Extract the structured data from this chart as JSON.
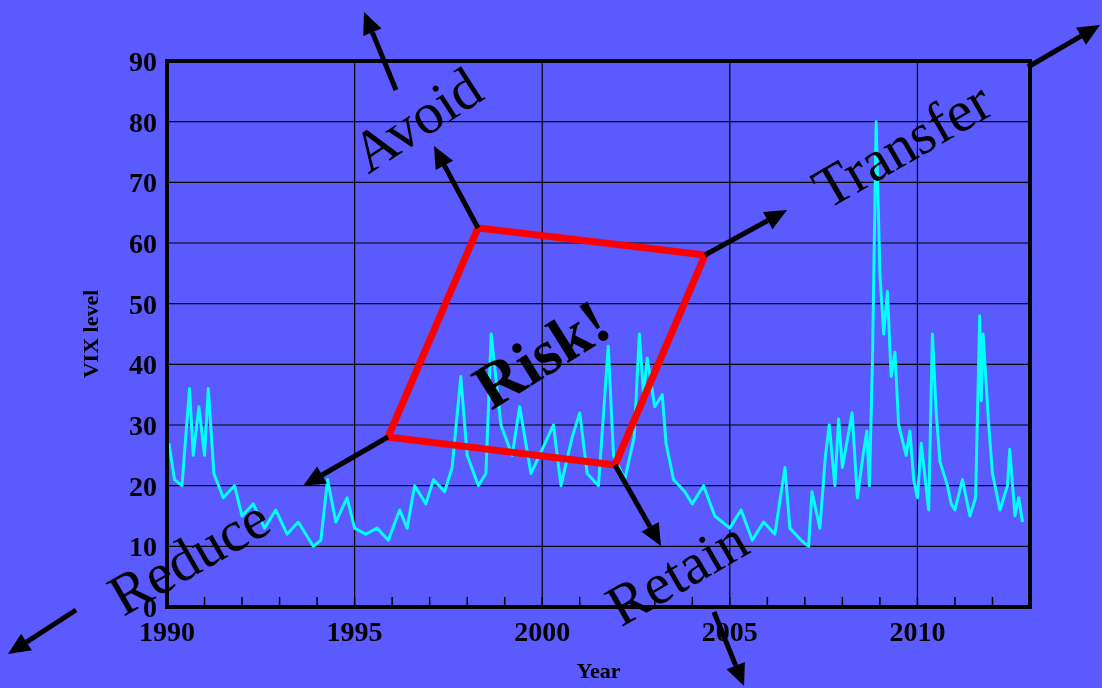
{
  "chart_data": {
    "type": "line",
    "xlabel": "Year",
    "ylabel": "VIX level",
    "xlim": [
      1990,
      2013
    ],
    "ylim": [
      0,
      90
    ],
    "xticks": [
      1990,
      {
        "value": 1991,
        "label": null
      },
      {
        "value": 1992,
        "label": null
      },
      {
        "value": 1993,
        "label": null
      },
      {
        "value": 1994,
        "label": null
      },
      1995,
      {
        "value": 1996,
        "label": null
      },
      {
        "value": 1997,
        "label": null
      },
      {
        "value": 1998,
        "label": null
      },
      {
        "value": 1999,
        "label": null
      },
      2000,
      {
        "value": 2001,
        "label": null
      },
      {
        "value": 2002,
        "label": null
      },
      {
        "value": 2003,
        "label": null
      },
      {
        "value": 2004,
        "label": null
      },
      2005,
      {
        "value": 2006,
        "label": null
      },
      {
        "value": 2007,
        "label": null
      },
      {
        "value": 2008,
        "label": null
      },
      {
        "value": 2009,
        "label": null
      },
      2010,
      {
        "value": 2011,
        "label": null
      },
      {
        "value": 2012,
        "label": null
      }
    ],
    "yticks": [
      0,
      10,
      20,
      30,
      40,
      50,
      60,
      70,
      80,
      90
    ],
    "grid": true,
    "marker": "none",
    "line_style": "solid",
    "annotations": [
      "Avoid",
      "Transfer",
      "Reduce",
      "Retain",
      "Risk!"
    ],
    "series": [
      {
        "color": "#00ffff",
        "x": [
          1990.05,
          1990.2,
          1990.4,
          1990.6,
          1990.7,
          1990.85,
          1991.0,
          1991.1,
          1991.25,
          1991.5,
          1991.8,
          1992.0,
          1992.3,
          1992.6,
          1992.9,
          1993.2,
          1993.5,
          1993.9,
          1994.1,
          1994.28,
          1994.5,
          1994.8,
          1995.0,
          1995.3,
          1995.6,
          1995.9,
          1996.2,
          1996.4,
          1996.6,
          1996.9,
          1997.1,
          1997.4,
          1997.6,
          1997.83,
          1998.0,
          1998.3,
          1998.5,
          1998.64,
          1998.9,
          1999.2,
          1999.4,
          1999.7,
          2000.0,
          2000.3,
          2000.5,
          2000.8,
          2001.0,
          2001.2,
          2001.5,
          2001.76,
          2001.9,
          2002.2,
          2002.45,
          2002.59,
          2002.7,
          2002.8,
          2003.0,
          2003.2,
          2003.3,
          2003.5,
          2003.8,
          2004.0,
          2004.3,
          2004.6,
          2005.0,
          2005.3,
          2005.6,
          2005.9,
          2006.2,
          2006.47,
          2006.6,
          2006.9,
          2007.1,
          2007.19,
          2007.4,
          2007.55,
          2007.65,
          2007.8,
          2007.9,
          2008.0,
          2008.26,
          2008.4,
          2008.55,
          2008.65,
          2008.72,
          2008.8,
          2008.9,
          2009.0,
          2009.1,
          2009.2,
          2009.3,
          2009.4,
          2009.5,
          2009.7,
          2009.8,
          2009.9,
          2010.0,
          2010.1,
          2010.3,
          2010.4,
          2010.5,
          2010.6,
          2010.8,
          2010.9,
          2011.0,
          2011.2,
          2011.4,
          2011.55,
          2011.66,
          2011.7,
          2011.75,
          2011.9,
          2012.0,
          2012.2,
          2012.4,
          2012.46,
          2012.6,
          2012.7,
          2012.8
        ],
        "values": [
          27,
          21,
          20,
          36,
          25,
          33,
          25,
          36,
          22,
          18,
          20,
          15,
          17,
          13,
          16,
          12,
          14,
          10,
          11,
          21,
          14,
          18,
          13,
          12,
          13,
          11,
          16,
          13,
          20,
          17,
          21,
          19,
          23,
          38,
          25,
          20,
          22,
          45,
          30,
          25,
          33,
          22,
          26,
          30,
          20,
          28,
          32,
          22,
          20,
          43,
          25,
          21,
          28,
          45,
          35,
          41,
          33,
          35,
          27,
          21,
          19,
          17,
          20,
          15,
          13,
          16,
          11,
          14,
          12,
          23,
          13,
          11,
          10,
          19,
          13,
          25,
          30,
          20,
          31,
          23,
          32,
          18,
          25,
          29,
          20,
          40,
          80,
          55,
          45,
          52,
          38,
          42,
          30,
          25,
          29,
          21,
          18,
          27,
          16,
          45,
          32,
          24,
          20,
          17,
          16,
          21,
          15,
          18,
          48,
          34,
          45,
          30,
          22,
          16,
          20,
          26,
          15,
          18,
          14
        ]
      }
    ]
  }
}
